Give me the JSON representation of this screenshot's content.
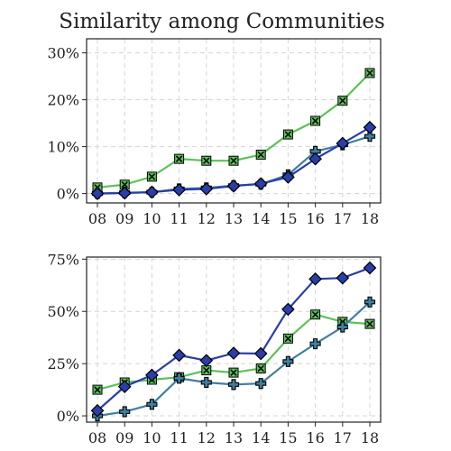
{
  "title": "Similarity among Communities",
  "chart_data": [
    {
      "type": "line",
      "x": [
        "08",
        "09",
        "10",
        "11",
        "12",
        "13",
        "14",
        "15",
        "16",
        "17",
        "18"
      ],
      "ylim": [
        -2,
        33
      ],
      "yticks": [
        0,
        10,
        20,
        30
      ],
      "ytick_labels": [
        "0%",
        "10%",
        "20%",
        "30%"
      ],
      "grid": true,
      "series": [
        {
          "color": "#5cc15a",
          "marker": "x-square",
          "values": [
            1.3,
            1.9,
            3.6,
            7.4,
            7.0,
            7.0,
            8.3,
            12.6,
            15.5,
            19.8,
            25.7
          ]
        },
        {
          "color": "#3f7fa0",
          "marker": "plus",
          "values": [
            0.0,
            0.2,
            0.3,
            1.0,
            1.2,
            1.7,
            2.0,
            4.0,
            9.0,
            10.4,
            12.2
          ]
        },
        {
          "color": "#2a3ea8",
          "marker": "diamond",
          "values": [
            0.0,
            0.1,
            0.3,
            0.8,
            1.0,
            1.6,
            2.1,
            3.5,
            7.4,
            10.7,
            14.1
          ]
        }
      ]
    },
    {
      "type": "line",
      "x": [
        "08",
        "09",
        "10",
        "11",
        "12",
        "13",
        "14",
        "15",
        "16",
        "17",
        "18"
      ],
      "ylim": [
        -3,
        76
      ],
      "yticks": [
        0,
        25,
        50,
        75
      ],
      "ytick_labels": [
        "0%",
        "25%",
        "50%",
        "75%"
      ],
      "grid": true,
      "series": [
        {
          "color": "#5cc15a",
          "marker": "x-square",
          "values": [
            12.5,
            16.0,
            17.3,
            18.5,
            21.8,
            20.7,
            22.7,
            37.0,
            48.5,
            45.0,
            44.0
          ]
        },
        {
          "color": "#3f7fa0",
          "marker": "plus",
          "values": [
            0.0,
            2.0,
            5.5,
            18.0,
            16.0,
            15.0,
            15.5,
            26.0,
            34.5,
            42.5,
            54.5
          ]
        },
        {
          "color": "#2a3ea8",
          "marker": "diamond",
          "values": [
            2.5,
            14.0,
            19.5,
            29.0,
            26.5,
            30.0,
            29.8,
            51.0,
            65.5,
            66.0,
            70.8
          ]
        }
      ]
    }
  ]
}
